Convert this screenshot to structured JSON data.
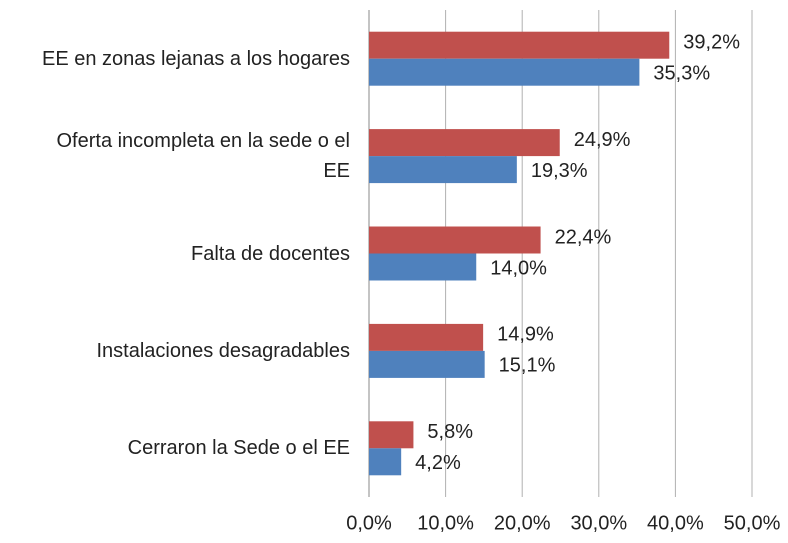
{
  "chart_data": {
    "type": "bar",
    "orientation": "horizontal",
    "categories": [
      "EE en zonas lejanas a los hogares",
      "Oferta incompleta en la sede o el EE",
      "Falta de docentes",
      "Instalaciones desagradables",
      "Cerraron la Sede o el EE"
    ],
    "series": [
      {
        "color": "#c0504d",
        "values": [
          39.2,
          24.9,
          22.4,
          14.9,
          5.8
        ],
        "value_labels": [
          "39,2%",
          "24,9%",
          "22,4%",
          "14,9%",
          "5,8%"
        ]
      },
      {
        "color": "#4f81bd",
        "values": [
          35.3,
          19.3,
          14.0,
          15.1,
          4.2
        ],
        "value_labels": [
          "35,3%",
          "19,3%",
          "14,0%",
          "15,1%",
          "4,2%"
        ]
      }
    ],
    "xlim": [
      0,
      50
    ],
    "xticks": [
      {
        "value": 0,
        "label": "0,0%"
      },
      {
        "value": 10,
        "label": "10,0%"
      },
      {
        "value": 20,
        "label": "20,0%"
      },
      {
        "value": 30,
        "label": "30,0%"
      },
      {
        "value": 40,
        "label": "40,0%"
      },
      {
        "value": 50,
        "label": "50,0%"
      }
    ],
    "grid": true
  }
}
